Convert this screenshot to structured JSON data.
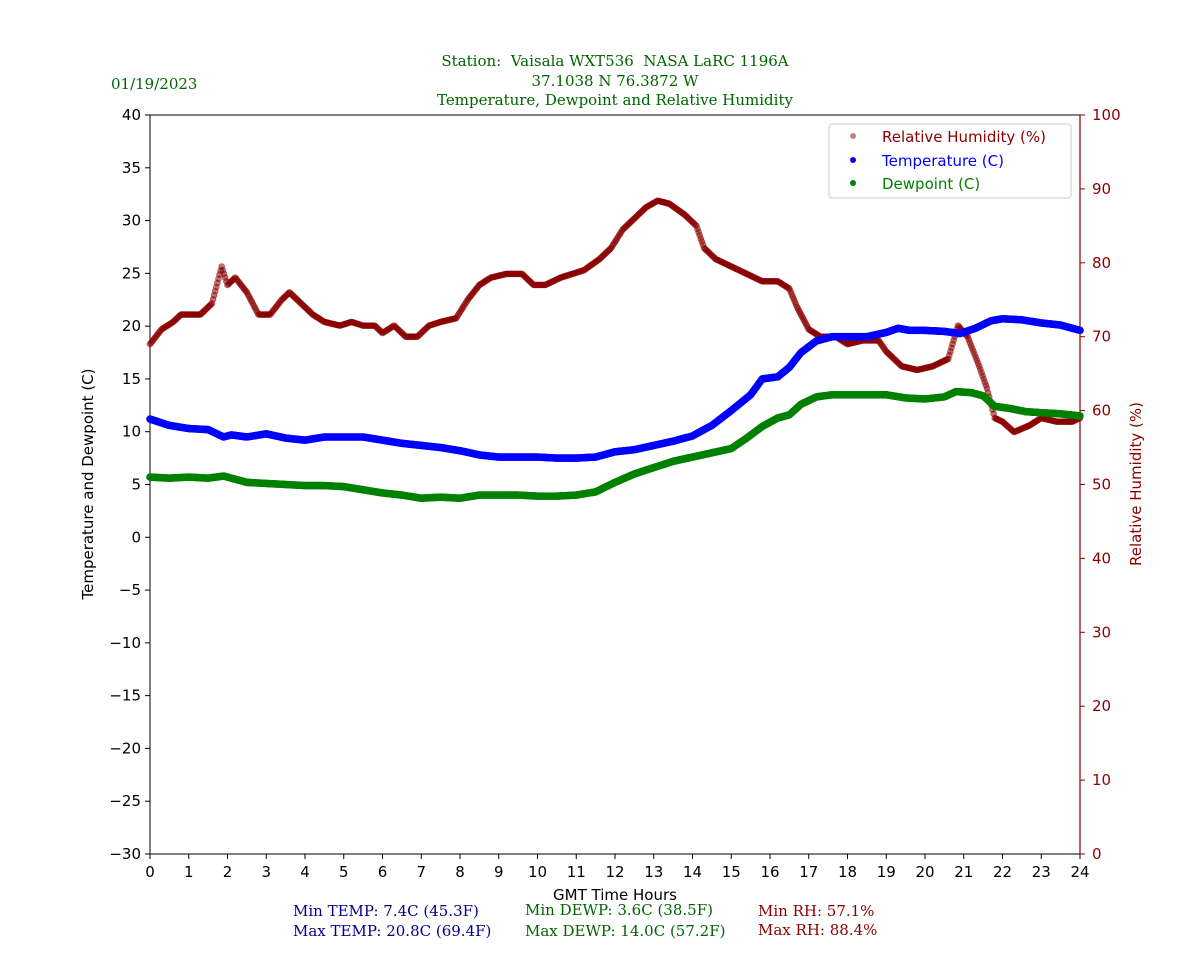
{
  "header": {
    "date": "01/19/2023",
    "station_line": "Station:  Vaisala WXT536  NASA LaRC 1196A",
    "coords_line": "37.1038 N 76.3872 W",
    "title_line": "Temperature, Dewpoint and Relative Humidity"
  },
  "colors": {
    "title": "#006400",
    "temperature": "#0000ff",
    "dewpoint": "#008000",
    "rh": "#8b0000",
    "stats_temp": "#00008b"
  },
  "stats": {
    "min_temp": "Min TEMP: 7.4C (45.3F)",
    "max_temp": "Max TEMP: 20.8C (69.4F)",
    "min_dewp": "Min DEWP: 3.6C (38.5F)",
    "max_dewp": "Max DEWP: 14.0C (57.2F)",
    "min_rh": "Min RH: 57.1%",
    "max_rh": "Max RH: 88.4%"
  },
  "chart_data": {
    "type": "scatter",
    "xlabel": "GMT Time Hours",
    "ylabel": "Temperature and Dewpoint (C)",
    "y2label": "Relative Humidity (%)",
    "xlim": [
      0,
      24
    ],
    "ylim": [
      -30,
      40
    ],
    "y2lim": [
      0,
      100
    ],
    "xticks": [
      0,
      1,
      2,
      3,
      4,
      5,
      6,
      7,
      8,
      9,
      10,
      11,
      12,
      13,
      14,
      15,
      16,
      17,
      18,
      19,
      20,
      21,
      22,
      23,
      24
    ],
    "yticks": [
      40,
      35,
      30,
      25,
      20,
      15,
      10,
      5,
      0,
      -5,
      -10,
      -15,
      -20,
      -25,
      -30
    ],
    "yticklabels": [
      "40",
      "35",
      "30",
      "25",
      "20",
      "15",
      "10",
      "5",
      "0",
      "−5",
      "−10",
      "−15",
      "−20",
      "−25",
      "−30"
    ],
    "y2ticks": [
      100,
      90,
      80,
      70,
      60,
      50,
      40,
      30,
      20,
      10,
      0
    ],
    "legend_position": "top-right",
    "legend": [
      "Relative Humidity (%)",
      "Temperature (C)",
      "Dewpoint (C)"
    ],
    "series": [
      {
        "name": "Relative Humidity (%)",
        "axis": "right",
        "x": [
          0,
          0.3,
          0.6,
          0.8,
          1.0,
          1.3,
          1.6,
          1.85,
          2.0,
          2.2,
          2.5,
          2.8,
          3.1,
          3.4,
          3.6,
          3.8,
          4.2,
          4.5,
          4.9,
          5.2,
          5.5,
          5.8,
          6.0,
          6.3,
          6.6,
          6.9,
          7.2,
          7.5,
          7.9,
          8.2,
          8.5,
          8.8,
          9.2,
          9.6,
          9.9,
          10.2,
          10.6,
          10.9,
          11.2,
          11.6,
          11.9,
          12.2,
          12.5,
          12.8,
          13.1,
          13.4,
          13.8,
          14.1,
          14.3,
          14.6,
          15.0,
          15.4,
          15.8,
          16.2,
          16.5,
          16.7,
          17.0,
          17.3,
          17.7,
          18.0,
          18.4,
          18.8,
          19.0,
          19.4,
          19.8,
          20.2,
          20.6,
          20.85,
          21.1,
          21.4,
          21.6,
          21.8,
          22.0,
          22.3,
          22.7,
          23.0,
          23.4,
          23.8,
          24.0
        ],
        "values": [
          69,
          71,
          72,
          73,
          73,
          73,
          74.5,
          79.5,
          77,
          78,
          76,
          73,
          73,
          75,
          76,
          75,
          73,
          72,
          71.5,
          72,
          71.5,
          71.5,
          70.5,
          71.5,
          70,
          70,
          71.5,
          72,
          72.5,
          75,
          77,
          78,
          78.5,
          78.5,
          77,
          77,
          78,
          78.5,
          79,
          80.5,
          82,
          84.5,
          86,
          87.5,
          88.4,
          88,
          86.5,
          85,
          82,
          80.5,
          79.5,
          78.5,
          77.5,
          77.5,
          76.5,
          74,
          71,
          70,
          70,
          69,
          69.5,
          69.5,
          68,
          66,
          65.5,
          66,
          67,
          71.5,
          70,
          66,
          63,
          59,
          58.5,
          57.1,
          58,
          59,
          58.5,
          58.5,
          59
        ]
      },
      {
        "name": "Temperature (C)",
        "axis": "left",
        "x": [
          0,
          0.5,
          1.0,
          1.5,
          1.9,
          2.1,
          2.5,
          3.0,
          3.5,
          4.0,
          4.5,
          5.0,
          5.5,
          6.0,
          6.5,
          7.0,
          7.5,
          8.0,
          8.5,
          9.0,
          9.5,
          10.0,
          10.5,
          11.0,
          11.5,
          12.0,
          12.5,
          13.0,
          13.5,
          14.0,
          14.5,
          15.0,
          15.5,
          15.8,
          16.2,
          16.5,
          16.8,
          17.2,
          17.6,
          18.0,
          18.5,
          19.0,
          19.3,
          19.6,
          20.0,
          20.5,
          20.9,
          21.3,
          21.7,
          22.0,
          22.5,
          23.0,
          23.5,
          24.0
        ],
        "values": [
          11.2,
          10.6,
          10.3,
          10.2,
          9.5,
          9.7,
          9.5,
          9.8,
          9.4,
          9.2,
          9.5,
          9.5,
          9.5,
          9.2,
          8.9,
          8.7,
          8.5,
          8.2,
          7.8,
          7.6,
          7.6,
          7.6,
          7.5,
          7.5,
          7.6,
          8.1,
          8.3,
          8.7,
          9.1,
          9.6,
          10.6,
          12.0,
          13.5,
          15.0,
          15.2,
          16.1,
          17.5,
          18.6,
          19.0,
          19.0,
          19.0,
          19.4,
          19.8,
          19.6,
          19.6,
          19.5,
          19.3,
          19.8,
          20.5,
          20.7,
          20.6,
          20.3,
          20.1,
          19.6
        ]
      },
      {
        "name": "Dewpoint (C)",
        "axis": "left",
        "x": [
          0,
          0.5,
          1.0,
          1.5,
          1.9,
          2.1,
          2.5,
          3.0,
          3.5,
          4.0,
          4.5,
          5.0,
          5.5,
          6.0,
          6.5,
          7.0,
          7.5,
          8.0,
          8.5,
          9.0,
          9.5,
          10.0,
          10.5,
          11.0,
          11.5,
          12.0,
          12.5,
          13.0,
          13.5,
          14.0,
          14.5,
          15.0,
          15.4,
          15.8,
          16.2,
          16.5,
          16.8,
          17.2,
          17.6,
          18.0,
          18.5,
          19.0,
          19.5,
          20.0,
          20.5,
          20.8,
          21.2,
          21.5,
          21.8,
          22.2,
          22.6,
          23.0,
          23.5,
          24.0
        ],
        "values": [
          5.7,
          5.6,
          5.7,
          5.6,
          5.8,
          5.6,
          5.2,
          5.1,
          5.0,
          4.9,
          4.9,
          4.8,
          4.5,
          4.2,
          4.0,
          3.7,
          3.8,
          3.7,
          4.0,
          4.0,
          4.0,
          3.9,
          3.9,
          4.0,
          4.3,
          5.2,
          6.0,
          6.6,
          7.2,
          7.6,
          8.0,
          8.4,
          9.4,
          10.5,
          11.3,
          11.6,
          12.6,
          13.3,
          13.5,
          13.5,
          13.5,
          13.5,
          13.2,
          13.1,
          13.3,
          13.8,
          13.7,
          13.4,
          12.4,
          12.2,
          11.9,
          11.8,
          11.7,
          11.5
        ]
      }
    ]
  }
}
